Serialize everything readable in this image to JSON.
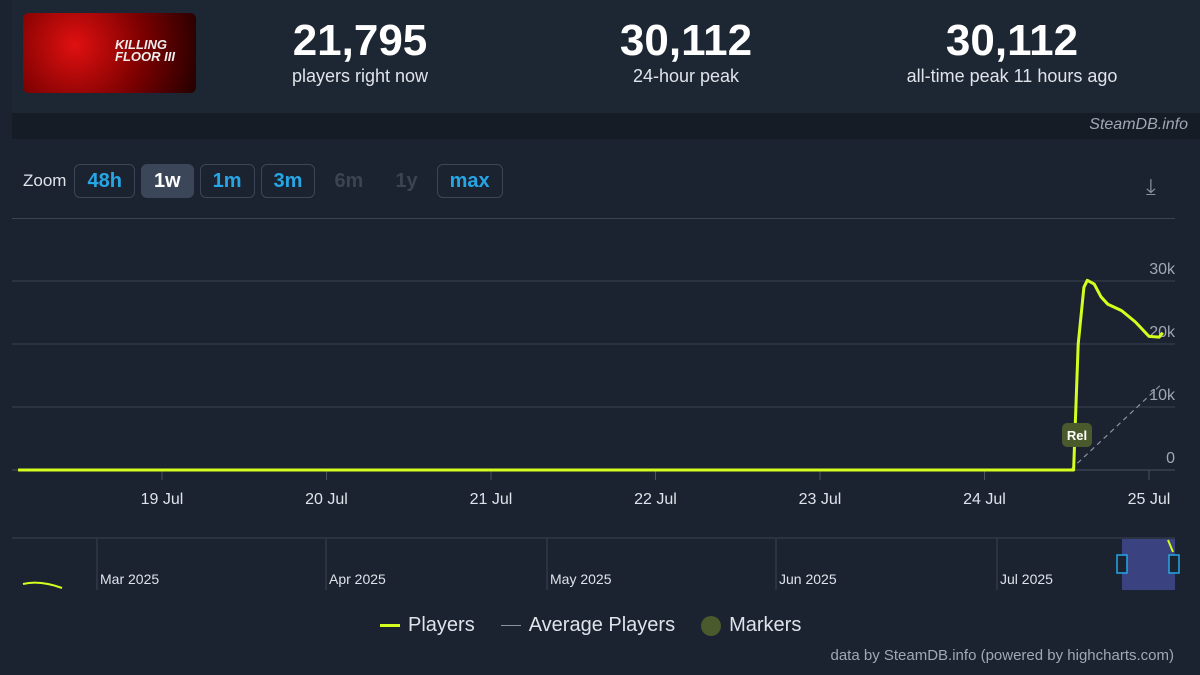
{
  "game": {
    "logo_text": "KILLING FLOOR III"
  },
  "stats": [
    {
      "value": "21,795",
      "label": "players right now"
    },
    {
      "value": "30,112",
      "label": "24-hour peak"
    },
    {
      "value": "30,112",
      "label": "all-time peak 11 hours ago"
    }
  ],
  "watermark": "SteamDB.info",
  "zoom": {
    "label": "Zoom",
    "buttons": [
      {
        "label": "48h",
        "state": "enabled"
      },
      {
        "label": "1w",
        "state": "selected"
      },
      {
        "label": "1m",
        "state": "enabled"
      },
      {
        "label": "3m",
        "state": "enabled"
      },
      {
        "label": "6m",
        "state": "disabled"
      },
      {
        "label": "1y",
        "state": "disabled"
      },
      {
        "label": "max",
        "state": "enabled"
      }
    ]
  },
  "download_icon": "download-icon",
  "colors": {
    "players": "#d4ff1e",
    "average": "#8a93a0",
    "markers": "#4a5a2c",
    "accent": "#27a6e5"
  },
  "chart_data": {
    "type": "line",
    "x_ticks": [
      "19 Jul",
      "20 Jul",
      "21 Jul",
      "22 Jul",
      "23 Jul",
      "24 Jul",
      "25 Jul"
    ],
    "y_ticks": [
      "0",
      "10k",
      "20k",
      "30k"
    ],
    "ylim": [
      0,
      30000
    ],
    "grid": true,
    "series": [
      {
        "name": "Players",
        "points": [
          [
            "2025-07-18 03:00",
            0
          ],
          [
            "2025-07-24 13:00",
            0
          ],
          [
            "2025-07-24 13:40",
            20000
          ],
          [
            "2025-07-24 14:30",
            29000
          ],
          [
            "2025-07-24 15:00",
            30112
          ],
          [
            "2025-07-24 16:00",
            29500
          ],
          [
            "2025-07-24 17:00",
            27500
          ],
          [
            "2025-07-24 18:00",
            26300
          ],
          [
            "2025-07-24 20:00",
            25300
          ],
          [
            "2025-07-24 22:00",
            23500
          ],
          [
            "2025-07-25 00:00",
            21200
          ],
          [
            "2025-07-25 01:30",
            21100
          ],
          [
            "2025-07-25 02:00",
            21795
          ]
        ]
      },
      {
        "name": "Average Players",
        "points": [
          [
            "2025-07-18 03:00",
            0
          ],
          [
            "2025-07-24 12:30",
            0
          ],
          [
            "2025-07-25 02:00",
            13800
          ]
        ]
      }
    ],
    "markers": [
      {
        "label": "Rel",
        "date": "2025-07-24 13:30"
      }
    ],
    "navigator": {
      "ticks": [
        "Mar 2025",
        "Apr 2025",
        "May 2025",
        "Jun 2025",
        "Jul 2025"
      ]
    },
    "legend": [
      "Players",
      "Average Players",
      "Markers"
    ],
    "legend_position": "bottom"
  },
  "footer": "data by SteamDB.info (powered by highcharts.com)"
}
